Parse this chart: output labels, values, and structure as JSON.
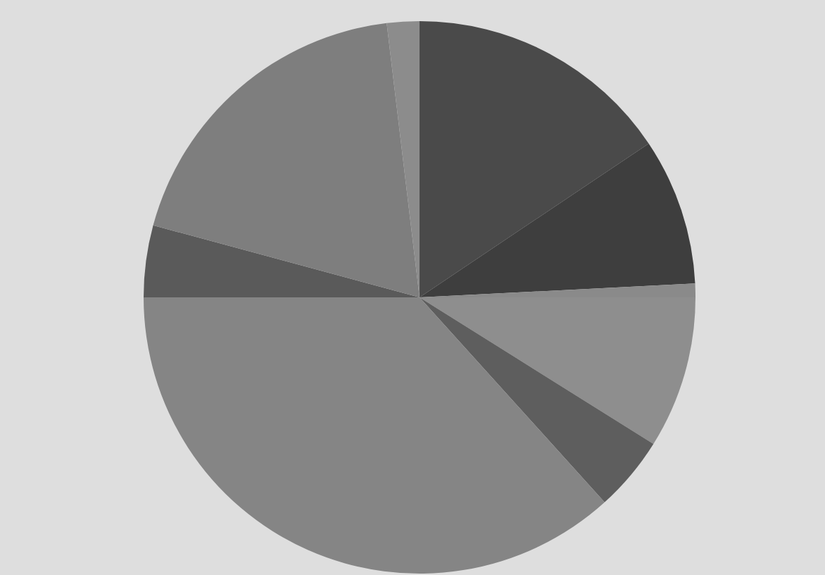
{
  "chart_data": {
    "type": "pie",
    "categories": [
      null,
      null,
      null,
      null,
      null,
      null,
      null,
      null,
      null
    ],
    "values": [
      15.6,
      8.6,
      0.8,
      8.9,
      4.4,
      36.7,
      4.2,
      18.9,
      1.9
    ],
    "colors": [
      "#4a4a4a",
      "#3e3e3e",
      "#8a8a8a",
      "#8e8e8e",
      "#5e5e5e",
      "#858585",
      "#5a5a5a",
      "#7e7e7e",
      "#8c8c8c"
    ]
  }
}
